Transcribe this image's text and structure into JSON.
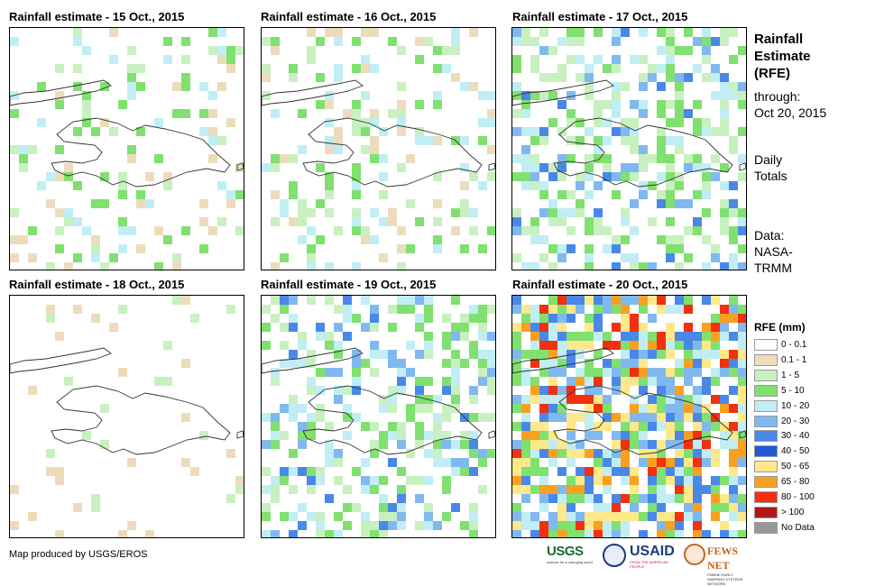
{
  "panels": [
    {
      "title": "Rainfall estimate - 15 Oct., 2015",
      "intensity": 1
    },
    {
      "title": "Rainfall estimate - 16 Oct., 2015",
      "intensity": 1
    },
    {
      "title": "Rainfall estimate - 17 Oct., 2015",
      "intensity": 2
    },
    {
      "title": "Rainfall estimate - 18 Oct., 2015",
      "intensity": 0
    },
    {
      "title": "Rainfall estimate - 19 Oct., 2015",
      "intensity": 2
    },
    {
      "title": "Rainfall estimate - 20 Oct., 2015",
      "intensity": 3
    }
  ],
  "sidebar": {
    "title_line1": "Rainfall",
    "title_line2": "Estimate",
    "title_line3": "(RFE)",
    "through_label": "through:",
    "through_date": "Oct 20, 2015",
    "daily_line1": "Daily",
    "daily_line2": "Totals",
    "data_line1": "Data:",
    "data_line2": "NASA-",
    "data_line3": "TRMM"
  },
  "legend": {
    "title": "RFE (mm)",
    "items": [
      {
        "label": "0 - 0.1",
        "color": "#ffffff"
      },
      {
        "label": "0.1 - 1",
        "color": "#ecdcbc"
      },
      {
        "label": "1 - 5",
        "color": "#c8f0c0"
      },
      {
        "label": "5 - 10",
        "color": "#80e070"
      },
      {
        "label": "10 - 20",
        "color": "#c0eef4"
      },
      {
        "label": "20 - 30",
        "color": "#80b8f0"
      },
      {
        "label": "30 - 40",
        "color": "#4a88e8"
      },
      {
        "label": "40 - 50",
        "color": "#2058d8"
      },
      {
        "label": "50 - 65",
        "color": "#fde88a"
      },
      {
        "label": "65 - 80",
        "color": "#f8a020"
      },
      {
        "label": "80 - 100",
        "color": "#f03010"
      },
      {
        "label": "> 100",
        "color": "#b01818"
      },
      {
        "label": "No Data",
        "color": "#989898"
      }
    ]
  },
  "credit": "Map produced by USGS/EROS",
  "logos": {
    "usgs": "USGS",
    "usgs_tagline": "science for a changing world",
    "usaid": "USAID",
    "usaid_tagline": "FROM THE AMERICAN PEOPLE",
    "fews": "FEWS NET",
    "fews_tagline": "FAMINE EARLY WARNING SYSTEMS NETWORK"
  }
}
